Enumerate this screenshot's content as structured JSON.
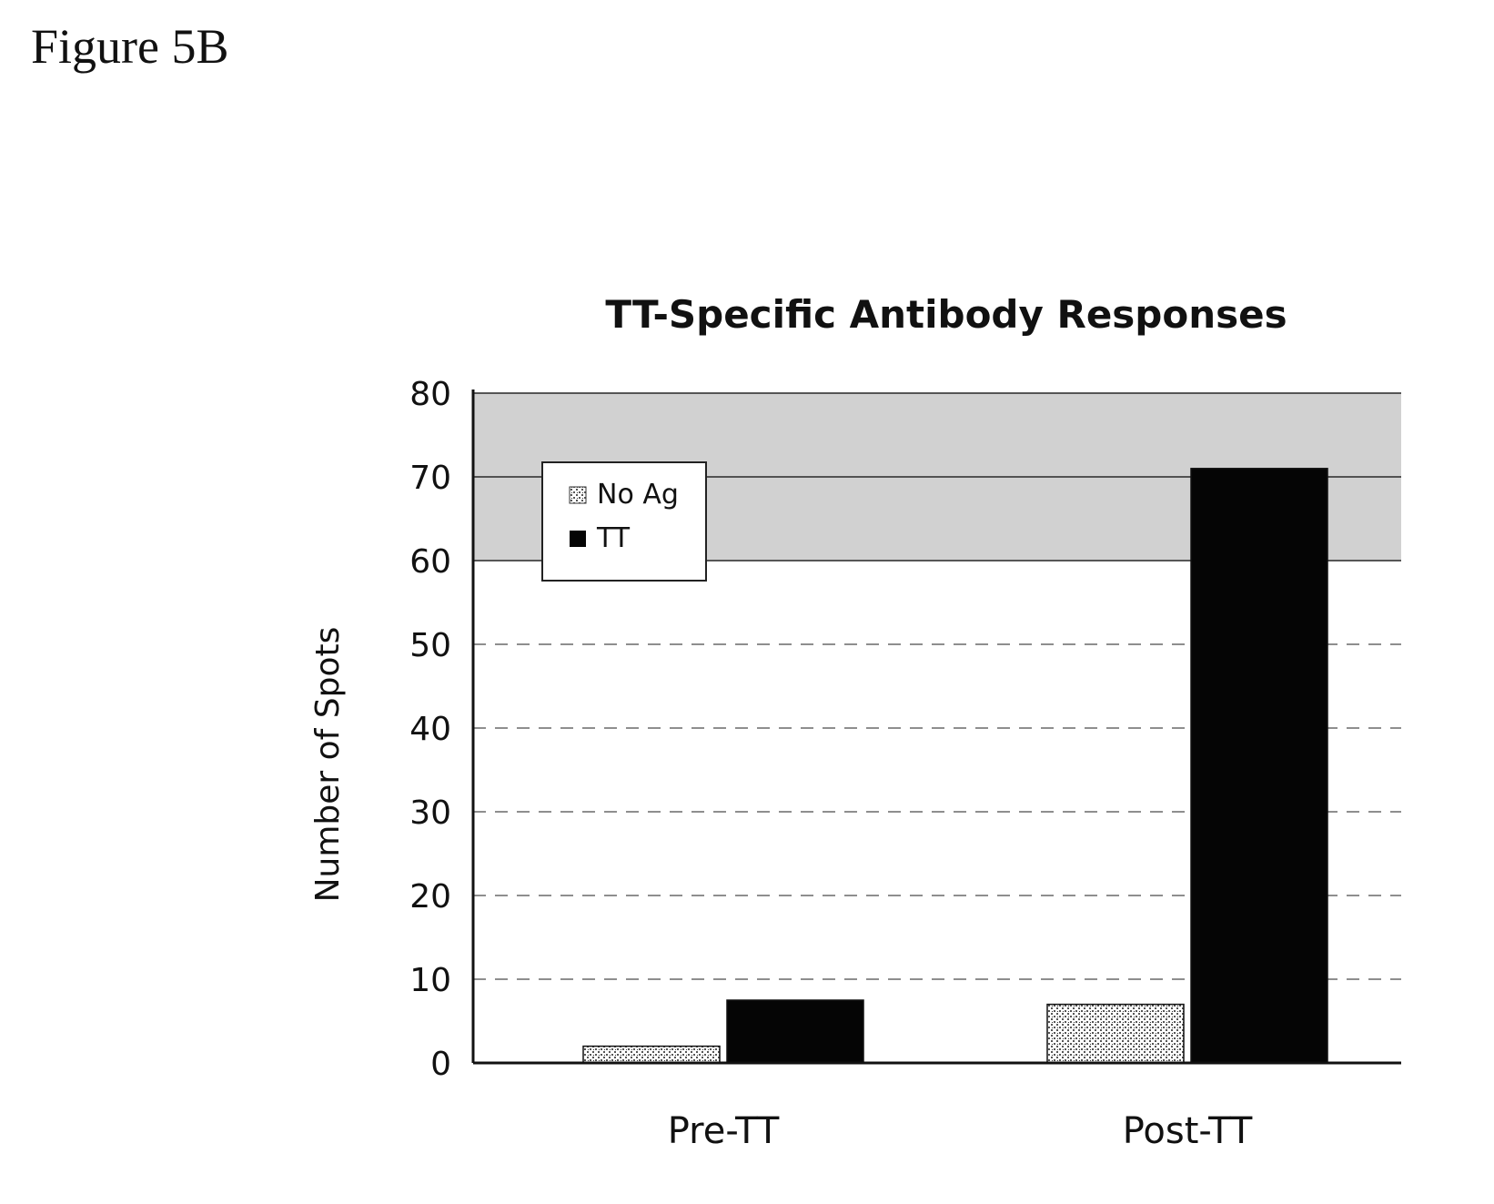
{
  "figure_label": "Figure 5B",
  "colors": {
    "no_ag_fill": "#8a8a8a",
    "tt_fill": "#050505",
    "plot_shading": "#9a9a9a",
    "axis": "#111111"
  },
  "chart_data": {
    "type": "bar",
    "title": "TT-Specific Antibody Responses",
    "xlabel": "",
    "ylabel": "Number of Spots",
    "categories": [
      "Pre-TT",
      "Post-TT"
    ],
    "series": [
      {
        "name": "No Ag",
        "values": [
          2,
          7
        ]
      },
      {
        "name": "TT",
        "values": [
          7.5,
          71
        ]
      }
    ],
    "ylim": [
      0,
      80
    ],
    "yticks": [
      0,
      10,
      20,
      30,
      40,
      50,
      60,
      70,
      80
    ],
    "grid": true,
    "legend_position": "top-left"
  }
}
